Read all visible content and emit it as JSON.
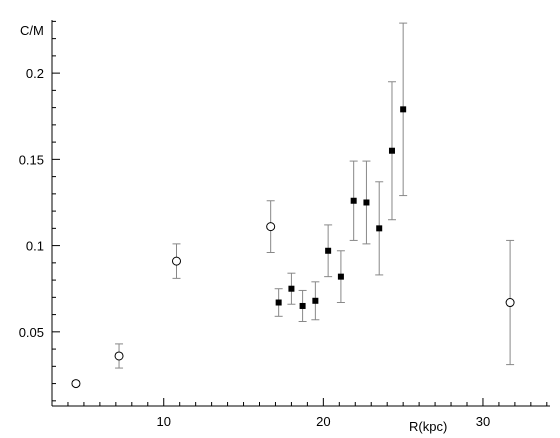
{
  "chart_data": {
    "type": "scatter",
    "title": "",
    "xlabel": "R(kpc)",
    "ylabel": "C/M",
    "xlim": [
      3,
      34.2
    ],
    "ylim": [
      0.007,
      0.2308
    ],
    "x_ticks": [
      10,
      20,
      30
    ],
    "y_ticks": [
      0.05,
      0.1,
      0.15,
      0.2
    ],
    "x_tick_labels": [
      "10",
      "20",
      "30"
    ],
    "y_tick_labels": [
      "0.05",
      "0.1",
      "0.15",
      "0.2"
    ],
    "grid": false,
    "series": [
      {
        "marker": "open-circle",
        "points": [
          {
            "x": 4.5,
            "y": 0.02,
            "err": 0.001
          },
          {
            "x": 7.2,
            "y": 0.036,
            "err": 0.007
          },
          {
            "x": 10.8,
            "y": 0.091,
            "err": 0.01
          },
          {
            "x": 16.7,
            "y": 0.111,
            "err": 0.015
          },
          {
            "x": 31.7,
            "y": 0.067,
            "err": 0.036
          }
        ]
      },
      {
        "marker": "filled-square",
        "points": [
          {
            "x": 17.2,
            "y": 0.067,
            "err": 0.008
          },
          {
            "x": 18.0,
            "y": 0.075,
            "err": 0.009
          },
          {
            "x": 18.7,
            "y": 0.065,
            "err": 0.009
          },
          {
            "x": 19.5,
            "y": 0.068,
            "err": 0.011
          },
          {
            "x": 20.3,
            "y": 0.097,
            "err": 0.015
          },
          {
            "x": 21.1,
            "y": 0.082,
            "err": 0.015
          },
          {
            "x": 21.9,
            "y": 0.126,
            "err": 0.023
          },
          {
            "x": 22.7,
            "y": 0.125,
            "err": 0.024
          },
          {
            "x": 23.5,
            "y": 0.11,
            "err": 0.027
          },
          {
            "x": 24.3,
            "y": 0.155,
            "err": 0.04
          },
          {
            "x": 25.0,
            "y": 0.179,
            "err": 0.05
          }
        ]
      }
    ]
  },
  "colors": {
    "axis": "#000000",
    "error_bar": "#888888",
    "marker": "#000000",
    "background": "#ffffff"
  }
}
